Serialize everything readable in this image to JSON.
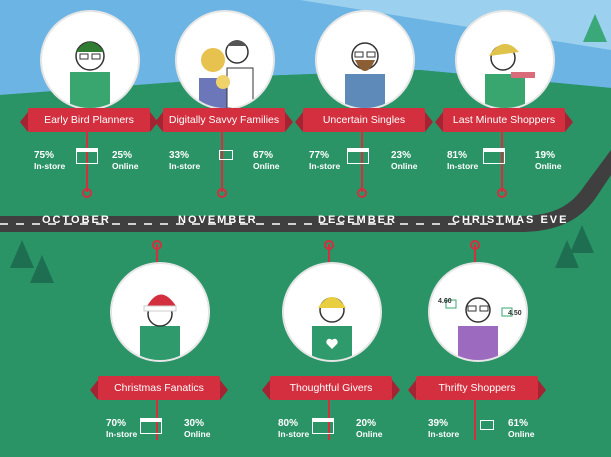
{
  "colors": {
    "sky": "#6bb4e3",
    "grass": "#2a9466",
    "road": "#3f3f3f",
    "ribbon": "#d32f3f",
    "tree": "#1e6f51"
  },
  "timeline": [
    "OCTOBER",
    "NOVEMBER",
    "DECEMBER",
    "CHRISTMAS EVE"
  ],
  "personas_top": [
    {
      "name": "Early Bird Planners",
      "instore": "75%",
      "online": "25%"
    },
    {
      "name": "Digitally Savvy Families",
      "instore": "33%",
      "online": "67%"
    },
    {
      "name": "Uncertain Singles",
      "instore": "77%",
      "online": "23%"
    },
    {
      "name": "Last Minute Shoppers",
      "instore": "81%",
      "online": "19%"
    }
  ],
  "personas_bottom": [
    {
      "name": "Christmas Fanatics",
      "instore": "70%",
      "online": "30%"
    },
    {
      "name": "Thoughtful Givers",
      "instore": "80%",
      "online": "20%"
    },
    {
      "name": "Thrifty Shoppers",
      "instore": "39%",
      "online": "61%"
    }
  ],
  "labels": {
    "instore": "In-store",
    "online": "Online"
  },
  "thrifty_ratings": [
    "4.60",
    "4.50"
  ]
}
